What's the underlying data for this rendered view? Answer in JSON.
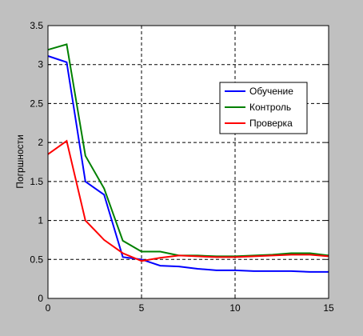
{
  "chart_data": {
    "type": "line",
    "title": "",
    "xlabel": "",
    "ylabel": "Погршности",
    "xlim": [
      0,
      15
    ],
    "ylim": [
      0,
      3.5
    ],
    "grid": true,
    "legend_position": "top-right",
    "x_ticks": [
      0,
      5,
      10,
      15
    ],
    "x_tick_labels": [
      "0",
      "5",
      "10",
      "15"
    ],
    "y_ticks": [
      0,
      0.5,
      1,
      1.5,
      2,
      2.5,
      3,
      3.5
    ],
    "y_tick_labels": [
      "0",
      "0.5",
      "1",
      "1.5",
      "2",
      "2.5",
      "3",
      "3.5"
    ],
    "x": [
      0,
      1,
      2,
      3,
      4,
      5,
      6,
      7,
      8,
      9,
      10,
      11,
      12,
      13,
      14,
      15
    ],
    "series": [
      {
        "name": "Обучение",
        "color": "#0000ff",
        "values": [
          3.11,
          3.03,
          1.5,
          1.33,
          0.53,
          0.5,
          0.42,
          0.41,
          0.38,
          0.36,
          0.36,
          0.35,
          0.35,
          0.35,
          0.34,
          0.34
        ]
      },
      {
        "name": "Контроль",
        "color": "#008000",
        "values": [
          3.19,
          3.26,
          1.83,
          1.41,
          0.74,
          0.6,
          0.6,
          0.55,
          0.55,
          0.54,
          0.54,
          0.55,
          0.56,
          0.58,
          0.58,
          0.55
        ]
      },
      {
        "name": "Проверка",
        "color": "#ff0000",
        "values": [
          1.85,
          2.02,
          1.0,
          0.75,
          0.58,
          0.48,
          0.52,
          0.55,
          0.54,
          0.53,
          0.53,
          0.54,
          0.55,
          0.56,
          0.56,
          0.54
        ]
      }
    ]
  }
}
